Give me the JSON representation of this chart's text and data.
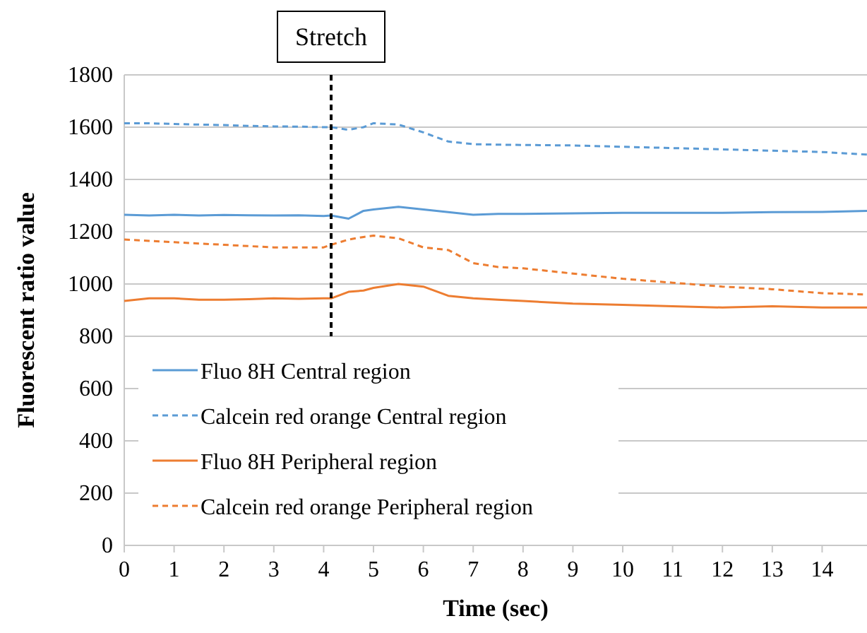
{
  "chart_data": {
    "type": "line",
    "xlabel": "Time (sec)",
    "ylabel": "Fluorescent ratio value",
    "xlim": [
      0,
      14.9
    ],
    "ylim": [
      0,
      1800
    ],
    "xticks": [
      0,
      1,
      2,
      3,
      4,
      5,
      6,
      7,
      8,
      9,
      10,
      11,
      12,
      13,
      14
    ],
    "yticks": [
      0,
      200,
      400,
      600,
      800,
      1000,
      1200,
      1400,
      1600,
      1800
    ],
    "grid": "y",
    "legend": "bottom left",
    "marker": "none",
    "ref_lines": [
      {
        "axis": "x",
        "value": 4.15,
        "label": "Stretch",
        "color": "#000000",
        "line_style": "dashed"
      }
    ],
    "x": [
      0,
      0.5,
      1,
      1.5,
      2,
      2.5,
      3,
      3.5,
      4,
      4.15,
      4.5,
      4.8,
      5,
      5.5,
      6,
      6.5,
      7,
      7.5,
      8,
      9,
      10,
      11,
      12,
      13,
      14,
      14.9
    ],
    "series": [
      {
        "name": "Fluo 8H Central region",
        "color": "#5b9bd5",
        "line_style": "solid",
        "values": [
          1265,
          1262,
          1265,
          1262,
          1264,
          1263,
          1262,
          1263,
          1260,
          1262,
          1250,
          1280,
          1285,
          1295,
          1285,
          1275,
          1265,
          1268,
          1268,
          1270,
          1272,
          1272,
          1272,
          1275,
          1276,
          1280
        ]
      },
      {
        "name": "Calcein red orange Central region",
        "color": "#5b9bd5",
        "line_style": "dashed",
        "values": [
          1615,
          1615,
          1612,
          1610,
          1608,
          1605,
          1603,
          1602,
          1600,
          1600,
          1590,
          1600,
          1615,
          1610,
          1580,
          1545,
          1535,
          1533,
          1532,
          1530,
          1525,
          1520,
          1515,
          1510,
          1505,
          1495
        ]
      },
      {
        "name": "Fluo 8H Peripheral region",
        "color": "#ed7d31",
        "line_style": "solid",
        "values": [
          935,
          945,
          945,
          940,
          940,
          942,
          945,
          943,
          945,
          945,
          970,
          975,
          985,
          1000,
          990,
          955,
          945,
          940,
          935,
          925,
          920,
          915,
          910,
          915,
          910,
          910
        ]
      },
      {
        "name": "Calcein red orange Peripheral region",
        "color": "#ed7d31",
        "line_style": "dashed",
        "values": [
          1170,
          1165,
          1160,
          1155,
          1150,
          1145,
          1140,
          1140,
          1140,
          1150,
          1170,
          1180,
          1185,
          1175,
          1140,
          1130,
          1080,
          1065,
          1060,
          1040,
          1020,
          1005,
          990,
          980,
          965,
          960
        ]
      }
    ]
  }
}
